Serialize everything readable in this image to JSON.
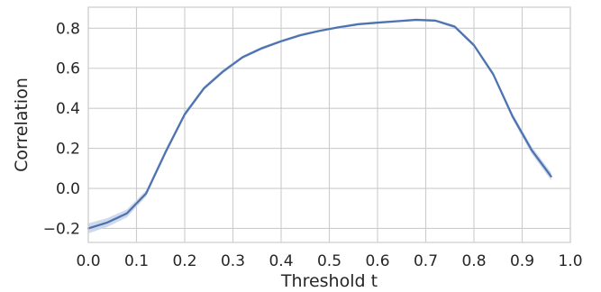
{
  "chart_data": {
    "type": "line",
    "title": "",
    "xlabel": "Threshold t",
    "ylabel": "Correlation",
    "xlim": [
      0.0,
      1.0
    ],
    "ylim": [
      -0.27,
      0.905
    ],
    "xticks": [
      0.0,
      0.1,
      0.2,
      0.3,
      0.4,
      0.5,
      0.6,
      0.7,
      0.8,
      0.9,
      1.0
    ],
    "xtick_labels": [
      "0.0",
      "0.1",
      "0.2",
      "0.3",
      "0.4",
      "0.5",
      "0.6",
      "0.7",
      "0.8",
      "0.9",
      "1.0"
    ],
    "yticks": [
      -0.2,
      0.0,
      0.2,
      0.4,
      0.6,
      0.8
    ],
    "ytick_labels": [
      "−0.2",
      "0.0",
      "0.2",
      "0.4",
      "0.6",
      "0.8"
    ],
    "grid": true,
    "legend": "none",
    "series": [
      {
        "color": "#4c72b0",
        "band_color": "#c6d2e8",
        "x": [
          0.0,
          0.04,
          0.08,
          0.12,
          0.16,
          0.2,
          0.24,
          0.28,
          0.32,
          0.36,
          0.4,
          0.44,
          0.48,
          0.52,
          0.56,
          0.6,
          0.64,
          0.68,
          0.72,
          0.76,
          0.8,
          0.84,
          0.88,
          0.92,
          0.96
        ],
        "y": [
          -0.2,
          -0.17,
          -0.125,
          -0.025,
          0.18,
          0.37,
          0.5,
          0.585,
          0.655,
          0.7,
          0.735,
          0.765,
          0.787,
          0.805,
          0.82,
          0.828,
          0.835,
          0.842,
          0.838,
          0.808,
          0.715,
          0.57,
          0.36,
          0.19,
          0.06
        ],
        "band": [
          0.025,
          0.022,
          0.02,
          0.015,
          0.015,
          0.012,
          0.01,
          0.01,
          0.008,
          0.008,
          0.007,
          0.007,
          0.006,
          0.006,
          0.006,
          0.006,
          0.006,
          0.006,
          0.006,
          0.008,
          0.01,
          0.012,
          0.015,
          0.018,
          0.02
        ]
      }
    ]
  }
}
